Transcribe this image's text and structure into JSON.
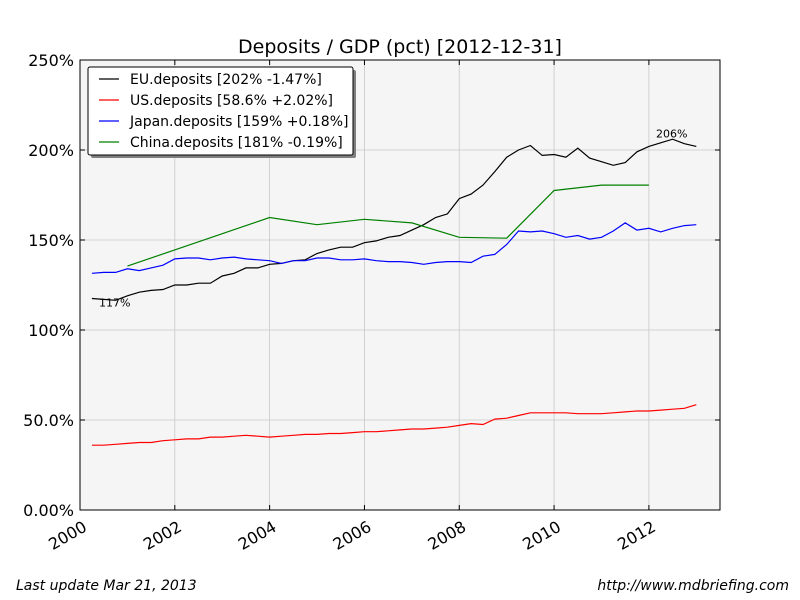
{
  "chart_data": {
    "type": "line",
    "title": "Deposits / GDP (pct) [2012-12-31]",
    "xlabel": "",
    "ylabel": "",
    "xlim": [
      2000,
      2013.5
    ],
    "ylim": [
      0,
      250
    ],
    "x_ticks": [
      2000,
      2002,
      2004,
      2006,
      2008,
      2010,
      2012
    ],
    "x_tick_labels": [
      "2000",
      "2002",
      "2004",
      "2006",
      "2008",
      "2010",
      "2012"
    ],
    "y_ticks": [
      0,
      50,
      100,
      150,
      200,
      250
    ],
    "y_tick_labels": [
      "0.00%",
      "50.0%",
      "100%",
      "150%",
      "200%",
      "250%"
    ],
    "grid": true,
    "legend_position": "top-left",
    "series": [
      {
        "name": "EU.deposits [202% -1.47%]",
        "color": "#000000",
        "x": [
          2000.25,
          2000.5,
          2000.75,
          2001.0,
          2001.25,
          2001.5,
          2001.75,
          2002.0,
          2002.25,
          2002.5,
          2002.75,
          2003.0,
          2003.25,
          2003.5,
          2003.75,
          2004.0,
          2004.25,
          2004.5,
          2004.75,
          2005.0,
          2005.25,
          2005.5,
          2005.75,
          2006.0,
          2006.25,
          2006.5,
          2006.75,
          2007.0,
          2007.25,
          2007.5,
          2007.75,
          2008.0,
          2008.25,
          2008.5,
          2008.75,
          2009.0,
          2009.25,
          2009.5,
          2009.75,
          2010.0,
          2010.25,
          2010.5,
          2010.75,
          2011.0,
          2011.25,
          2011.5,
          2011.75,
          2012.0,
          2012.25,
          2012.5,
          2012.75,
          2013.0
        ],
        "values": [
          117.5,
          117,
          116.5,
          119,
          121,
          122,
          122.5,
          125,
          125,
          126,
          126,
          130,
          131.5,
          134.5,
          134.5,
          136.5,
          137,
          138.5,
          139,
          142.5,
          144.5,
          146,
          146,
          148.5,
          149.5,
          151.5,
          152.5,
          155.5,
          158.5,
          162.5,
          164.5,
          173,
          175.5,
          180.5,
          188,
          196,
          200,
          202.5,
          197,
          197.5,
          196,
          201,
          195.5,
          193.5,
          191.5,
          193,
          199,
          202,
          204,
          206,
          203.5,
          202
        ]
      },
      {
        "name": "US.deposits [58.6% +2.02%]",
        "color": "#ff0000",
        "x": [
          2000.25,
          2000.5,
          2000.75,
          2001.0,
          2001.25,
          2001.5,
          2001.75,
          2002.0,
          2002.25,
          2002.5,
          2002.75,
          2003.0,
          2003.25,
          2003.5,
          2003.75,
          2004.0,
          2004.25,
          2004.5,
          2004.75,
          2005.0,
          2005.25,
          2005.5,
          2005.75,
          2006.0,
          2006.25,
          2006.5,
          2006.75,
          2007.0,
          2007.25,
          2007.5,
          2007.75,
          2008.0,
          2008.25,
          2008.5,
          2008.75,
          2009.0,
          2009.25,
          2009.5,
          2009.75,
          2010.0,
          2010.25,
          2010.5,
          2010.75,
          2011.0,
          2011.25,
          2011.5,
          2011.75,
          2012.0,
          2012.25,
          2012.5,
          2012.75,
          2013.0
        ],
        "values": [
          36,
          36,
          36.5,
          37,
          37.5,
          37.5,
          38.5,
          39,
          39.5,
          39.5,
          40.5,
          40.5,
          41,
          41.5,
          41,
          40.5,
          41,
          41.5,
          42,
          42,
          42.5,
          42.5,
          43,
          43.5,
          43.5,
          44,
          44.5,
          45,
          45,
          45.5,
          46,
          47,
          48,
          47.5,
          50.5,
          51,
          52.5,
          54,
          54,
          54,
          54,
          53.5,
          53.5,
          53.5,
          54,
          54.5,
          55,
          55,
          55.5,
          56,
          56.5,
          58.5
        ]
      },
      {
        "name": "Japan.deposits [159% +0.18%]",
        "color": "#0000ff",
        "x": [
          2000.25,
          2000.5,
          2000.75,
          2001.0,
          2001.25,
          2001.5,
          2001.75,
          2002.0,
          2002.25,
          2002.5,
          2002.75,
          2003.0,
          2003.25,
          2003.5,
          2003.75,
          2004.0,
          2004.25,
          2004.5,
          2004.75,
          2005.0,
          2005.25,
          2005.5,
          2005.75,
          2006.0,
          2006.25,
          2006.5,
          2006.75,
          2007.0,
          2007.25,
          2007.5,
          2007.75,
          2008.0,
          2008.25,
          2008.5,
          2008.75,
          2009.0,
          2009.25,
          2009.5,
          2009.75,
          2010.0,
          2010.25,
          2010.5,
          2010.75,
          2011.0,
          2011.25,
          2011.5,
          2011.75,
          2012.0,
          2012.25,
          2012.5,
          2012.75,
          2013.0
        ],
        "values": [
          131.5,
          132,
          132,
          134,
          133,
          134.5,
          136,
          139.5,
          140,
          140,
          139,
          140,
          140.5,
          139.5,
          139,
          138.5,
          137,
          138.5,
          138.5,
          140,
          140,
          139,
          139,
          139.5,
          138.5,
          138,
          138,
          137.5,
          136.5,
          137.5,
          138,
          138,
          137.5,
          141,
          142,
          147.5,
          155,
          154.5,
          155,
          153.5,
          151.5,
          152.5,
          150.5,
          151.5,
          155,
          159.5,
          155.5,
          156.5,
          154.5,
          156.5,
          158,
          158.5
        ]
      },
      {
        "name": "China.deposits [181% -0.19%]",
        "color": "#008000",
        "x": [
          2001.0,
          2004.0,
          2005.0,
          2006.0,
          2007.0,
          2008.0,
          2009.0,
          2010.0,
          2011.0,
          2012.0
        ],
        "values": [
          135.5,
          162.5,
          158.5,
          161.5,
          159.5,
          151.5,
          151,
          177.5,
          180.5,
          180.5
        ]
      }
    ],
    "annotations": [
      {
        "text": "117%",
        "x": 2000.4,
        "y": 113
      },
      {
        "text": "206%",
        "x": 2012.15,
        "y": 207
      }
    ]
  },
  "footer": {
    "left": "Last update Mar 21, 2013",
    "right": "http://www.mdbriefing.com"
  }
}
